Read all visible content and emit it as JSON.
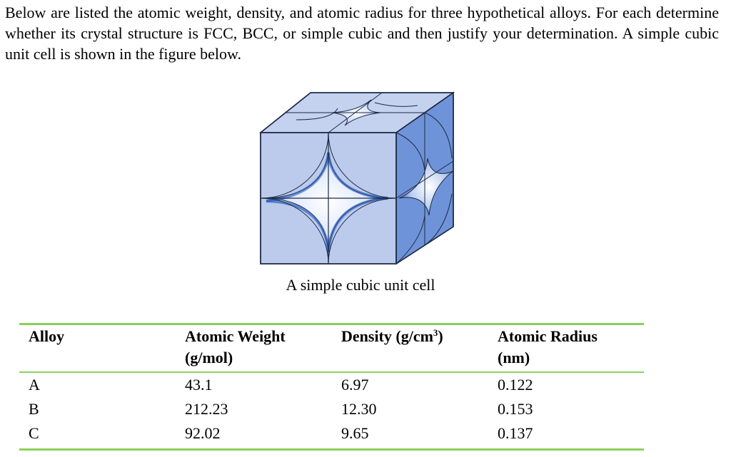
{
  "intro": "Below are listed the atomic weight, density, and atomic radius for three hypothetical alloys.  For each determine whether its crystal structure is FCC, BCC, or simple cubic and then justify your determination.  A simple cubic unit cell is shown in the figure below.",
  "figure": {
    "caption": "A simple cubic unit cell",
    "colors": {
      "face": "#b8c8ea",
      "front_face": "#bccbec",
      "side_face": "#6f93d8",
      "top_face": "#c4d2f0",
      "void_dark": "#1f54b8",
      "edge": "#1c2a44"
    }
  },
  "table": {
    "headers": {
      "alloy": "Alloy",
      "atomic_weight_line1": "Atomic Weight",
      "atomic_weight_line2": "(g/mol)",
      "density_prefix": "Density (g/cm",
      "density_sup": "3",
      "density_suffix": ")",
      "radius_line1": "Atomic Radius",
      "radius_line2": "(nm)"
    },
    "rows": [
      {
        "alloy": "A",
        "atomic_weight": "43.1",
        "density": "6.97",
        "radius": "0.122"
      },
      {
        "alloy": "B",
        "atomic_weight": "212.23",
        "density": "12.30",
        "radius": "0.153"
      },
      {
        "alloy": "C",
        "atomic_weight": "92.02",
        "density": "9.65",
        "radius": "0.137"
      }
    ],
    "rule_color": "#8bd15a"
  }
}
